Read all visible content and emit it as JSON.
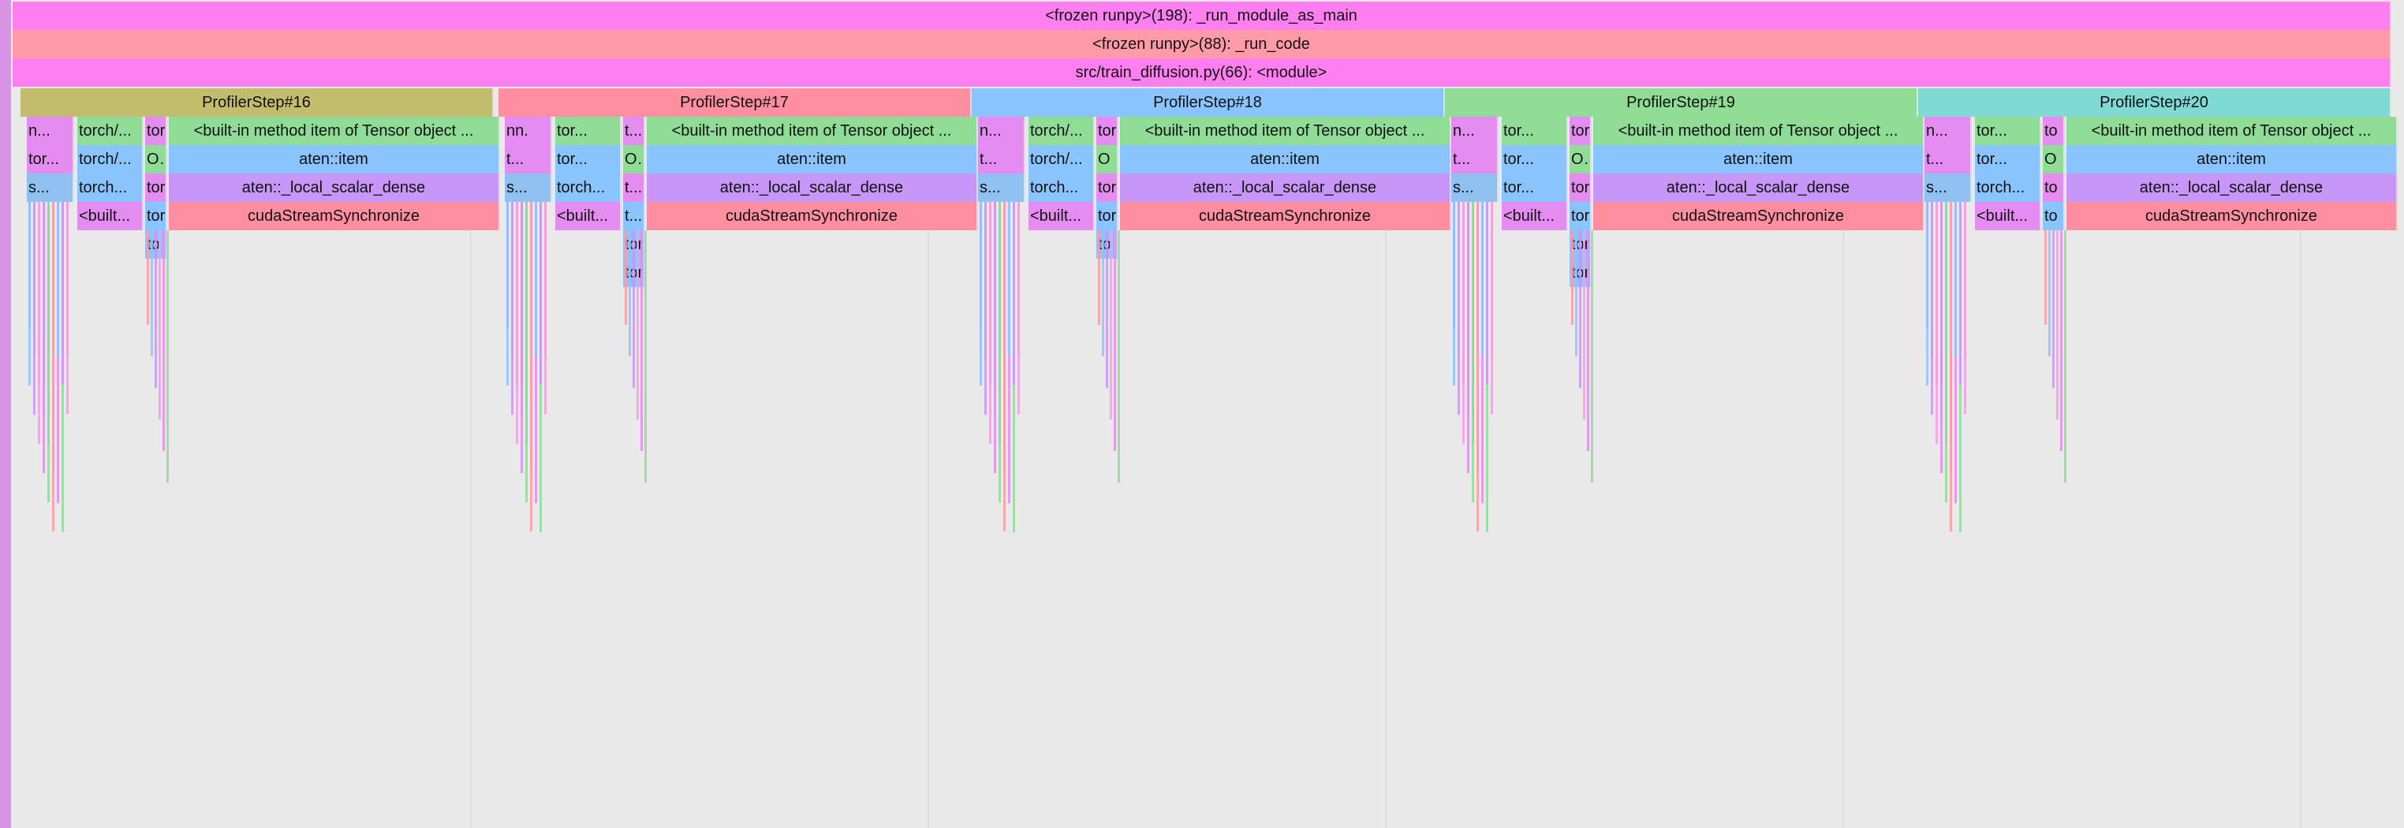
{
  "colors": {
    "background": "#e9e9e9",
    "magenta": "#ff7ef0",
    "salmon": "#ff9aa6",
    "olive": "#c2bc6e",
    "pink": "#ff8ea0",
    "blue": "#8ac4ff",
    "green": "#8edc96",
    "teal": "#7fdad6",
    "purple": "#c896f6",
    "lavender": "#e48cf0",
    "lightblue": "#8fc0f0"
  },
  "root_frames": [
    {
      "label": "<frozen runpy>(198): _run_module_as_main",
      "color": "magenta"
    },
    {
      "label": "<frozen runpy>(88): _run_code",
      "color": "salmon"
    },
    {
      "label": "src/train_diffusion.py(66): <module>",
      "color": "magenta"
    }
  ],
  "profiler_steps": [
    {
      "label": "ProfilerStep#16",
      "color": "olive",
      "cols": [
        [
          "n...",
          "tor...",
          "s..."
        ],
        [
          "torch/...",
          "torch/...",
          "torch...",
          "<built..."
        ],
        [
          "tor",
          "Op",
          "tor",
          "tor",
          "to"
        ],
        [
          "<built-in method item of Tensor object ...",
          "aten::item",
          "aten::_local_scalar_dense",
          "cudaStreamSynchronize"
        ]
      ]
    },
    {
      "label": "ProfilerStep#17",
      "color": "pink",
      "cols": [
        [
          "nn.",
          "t...",
          "s..."
        ],
        [
          "tor...",
          "tor...",
          "torch...",
          "<built..."
        ],
        [
          "t...",
          "Opt",
          "t...",
          "t...",
          "tor",
          "tor"
        ],
        [
          "<built-in method item of Tensor object ...",
          "aten::item",
          "aten::_local_scalar_dense",
          "cudaStreamSynchronize"
        ]
      ]
    },
    {
      "label": "ProfilerStep#18",
      "color": "blue",
      "cols": [
        [
          "n...",
          "t...",
          "s..."
        ],
        [
          "torch/...",
          "torch/...",
          "torch...",
          "<built..."
        ],
        [
          "tor",
          "O",
          "tor",
          "tor",
          "to"
        ],
        [
          "<built-in method item of Tensor object ...",
          "aten::item",
          "aten::_local_scalar_dense",
          "cudaStreamSynchronize"
        ]
      ]
    },
    {
      "label": "ProfilerStep#19",
      "color": "green",
      "cols": [
        [
          "n...",
          "t...",
          "s..."
        ],
        [
          "tor...",
          "tor...",
          "tor...",
          "<built..."
        ],
        [
          "tor",
          "Op",
          "tor",
          "tor",
          "tor",
          "tor"
        ],
        [
          "<built-in method item of Tensor object ...",
          "aten::item",
          "aten::_local_scalar_dense",
          "cudaStreamSynchronize"
        ]
      ]
    },
    {
      "label": "ProfilerStep#20",
      "color": "teal",
      "cols": [
        [
          "n...",
          "t...",
          "s..."
        ],
        [
          "tor...",
          "tor...",
          "torch...",
          "<built..."
        ],
        [
          "to",
          "O",
          "to",
          "to"
        ],
        [
          "<built-in method item of Tensor object ...",
          "aten::item",
          "aten::_local_scalar_dense",
          "cudaStreamSynchronize"
        ]
      ]
    }
  ]
}
